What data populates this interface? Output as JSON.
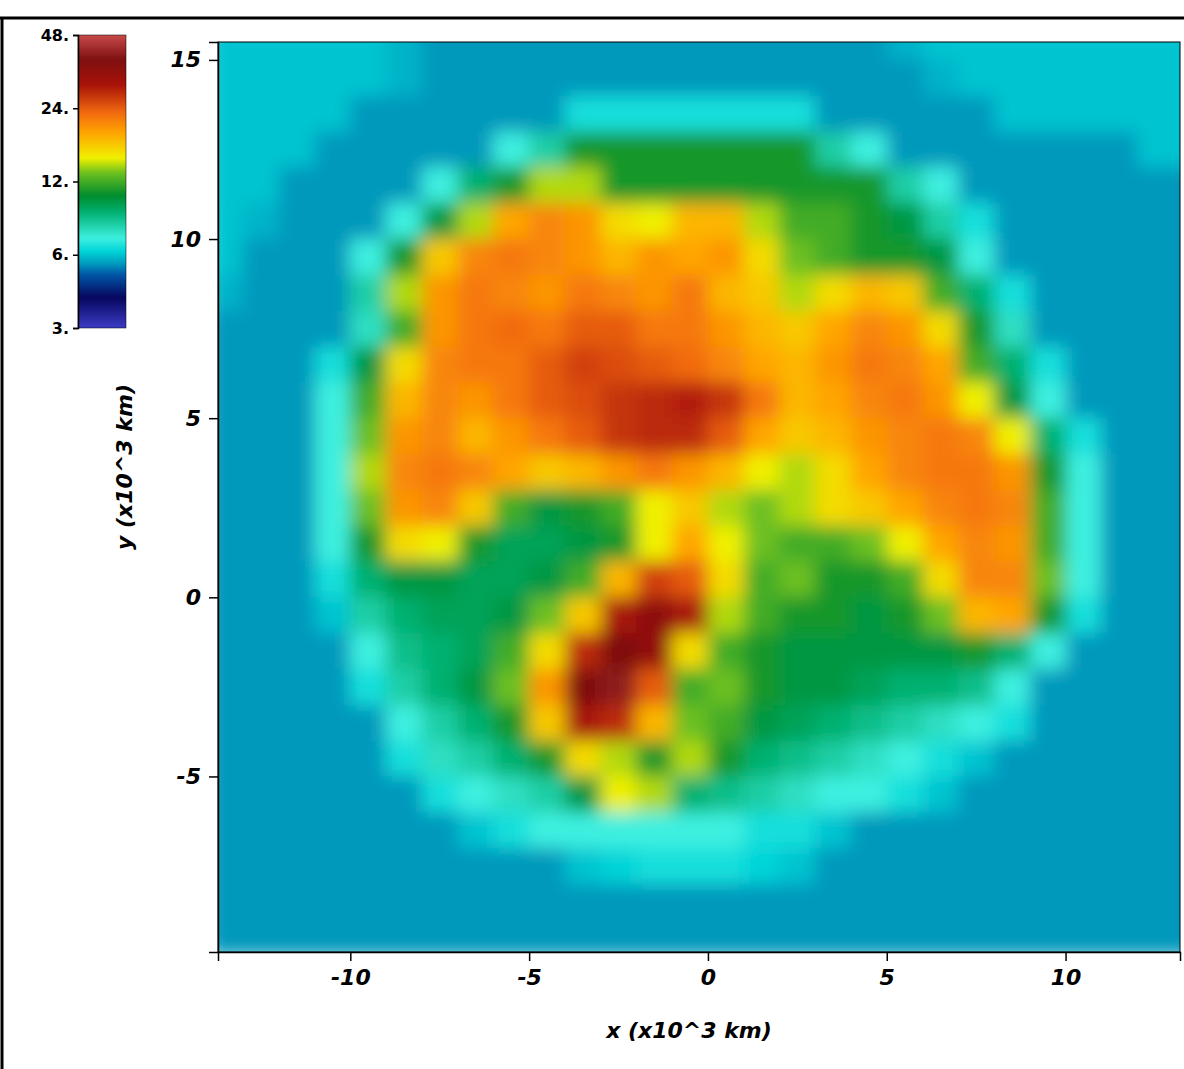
{
  "chart_data": {
    "type": "heatmap",
    "xlabel": "x (x10^3 km)",
    "ylabel": "y (x10^3 km)",
    "xlim": [
      -13.7,
      13.2
    ],
    "ylim": [
      -9.9,
      15.5
    ],
    "xticks": [
      -10,
      -5,
      0,
      5,
      10
    ],
    "yticks": [
      -5,
      0,
      5,
      10,
      15
    ],
    "x": [
      -13.5,
      -12.5,
      -11.5,
      -10.5,
      -9.5,
      -8.5,
      -7.5,
      -6.5,
      -5.5,
      -4.5,
      -3.5,
      -2.5,
      -1.5,
      -0.5,
      0.5,
      1.5,
      2.5,
      3.5,
      4.5,
      5.5,
      6.5,
      7.5,
      8.5,
      9.5,
      10.5,
      11.5,
      12.5,
      13.5
    ],
    "y": [
      15.5,
      14.5,
      13.5,
      12.5,
      11.5,
      10.5,
      9.5,
      8.5,
      7.5,
      6.5,
      5.5,
      4.5,
      3.5,
      2.5,
      1.5,
      0.5,
      -0.5,
      -1.5,
      -2.5,
      -3.5,
      -4.5,
      -5.5,
      -6.5,
      -7.5,
      -8.5,
      -9.5
    ],
    "values": [
      [
        6,
        6,
        6,
        6,
        6,
        5.8,
        5.5,
        5.5,
        5.5,
        5.5,
        5.5,
        5.5,
        5.5,
        5.5,
        5.5,
        5.5,
        5.5,
        5.5,
        5.5,
        5.8,
        6,
        6,
        6,
        6,
        6,
        6,
        6,
        6
      ],
      [
        6,
        6,
        6,
        6,
        6,
        5.8,
        5.5,
        5.5,
        5.5,
        5.5,
        5.5,
        5.5,
        5.5,
        5.5,
        5.5,
        5.5,
        5.5,
        5.5,
        5.5,
        5.5,
        5.8,
        6,
        6,
        6,
        6,
        6,
        6,
        6
      ],
      [
        6,
        6,
        6,
        6,
        5.5,
        5.5,
        5.5,
        5.5,
        5.5,
        5.5,
        6.5,
        6.5,
        6.5,
        6.5,
        6.5,
        6.5,
        6.5,
        5.5,
        5.5,
        5.5,
        5.5,
        5.5,
        6,
        6,
        6,
        6,
        6,
        6
      ],
      [
        6,
        6,
        6,
        5.5,
        5.5,
        5.5,
        5.5,
        5.5,
        7,
        8,
        11,
        11,
        11,
        11,
        11,
        11,
        11,
        8,
        7,
        5.5,
        5.5,
        5.5,
        5.5,
        5.5,
        5.5,
        5.5,
        6,
        6
      ],
      [
        6,
        6,
        5.5,
        5.5,
        5.5,
        5.5,
        7,
        9,
        11,
        14,
        14,
        11,
        11,
        11,
        11,
        11,
        11,
        11,
        11,
        8,
        7,
        5.5,
        5.5,
        5.5,
        5.5,
        5.5,
        5.5,
        5.5
      ],
      [
        6,
        5.8,
        5.5,
        5.5,
        5.5,
        7,
        10,
        14,
        19,
        21,
        20,
        16,
        15,
        18,
        18,
        14,
        12,
        12,
        11,
        10,
        8,
        6.5,
        5.5,
        5.5,
        5.5,
        5.5,
        5.5,
        5.5
      ],
      [
        6,
        5.5,
        5.5,
        5.5,
        7,
        11,
        17,
        21,
        22,
        21,
        20,
        18,
        20,
        19,
        20,
        16,
        13,
        12,
        11,
        11,
        10,
        7,
        5.5,
        5.5,
        5.5,
        5.5,
        5.5,
        5.5
      ],
      [
        5.8,
        5.5,
        5.5,
        5.5,
        8,
        14,
        20,
        22,
        21,
        20,
        22,
        21,
        20,
        22,
        18,
        17,
        14,
        16,
        18,
        17,
        12,
        9,
        6.5,
        5.5,
        5.5,
        5.5,
        5.5,
        5.5
      ],
      [
        5.5,
        5.5,
        5.5,
        5.5,
        7.5,
        12,
        20,
        22,
        23,
        22,
        24,
        24,
        22,
        22,
        20,
        18,
        17,
        19,
        21,
        20,
        16,
        11,
        7.5,
        5.5,
        5.5,
        5.5,
        5.5,
        5.5
      ],
      [
        5.5,
        5.5,
        5.5,
        6.5,
        10,
        16,
        21,
        22,
        22,
        24,
        26,
        25,
        24,
        23,
        21,
        19,
        18,
        20,
        22,
        21,
        19,
        12,
        9,
        6.5,
        5.5,
        5.5,
        5.5,
        5.5
      ],
      [
        5.5,
        5.5,
        5.5,
        7,
        12,
        18,
        21,
        20,
        22,
        24,
        25,
        27,
        28,
        29,
        27,
        22,
        18,
        19,
        21,
        22,
        20,
        15,
        10,
        7,
        5.5,
        5.5,
        5.5,
        5.5
      ],
      [
        5.5,
        5.5,
        5.5,
        7,
        13,
        20,
        21,
        18,
        20,
        22,
        24,
        27,
        28,
        28,
        24,
        19,
        17,
        18,
        20,
        21,
        22,
        21,
        15,
        9,
        6.5,
        5.5,
        5.5,
        5.5
      ],
      [
        5.5,
        5.5,
        5.5,
        7,
        14,
        21,
        22,
        21,
        19,
        17,
        18,
        20,
        22,
        20,
        18,
        15,
        14,
        16,
        19,
        21,
        22,
        22,
        20,
        11,
        7,
        5.5,
        5.5,
        5.5
      ],
      [
        5.5,
        5.5,
        5.5,
        7,
        13,
        20,
        21,
        17,
        12,
        10,
        11,
        12,
        15,
        17,
        14,
        13,
        14,
        16,
        17,
        19,
        21,
        22,
        21,
        12,
        7,
        5.5,
        5.5,
        5.5
      ],
      [
        5.5,
        5.5,
        5.5,
        7,
        11,
        16,
        15,
        11,
        9.5,
        9.5,
        10,
        11,
        15,
        19,
        15,
        13,
        12,
        12,
        13,
        15,
        19,
        21,
        20,
        12,
        7,
        5.5,
        5.5,
        5.5
      ],
      [
        5.5,
        5.5,
        5.5,
        6.5,
        9,
        10,
        10,
        9.5,
        9.5,
        10,
        12,
        18,
        26,
        24,
        16,
        12,
        13,
        11,
        11,
        12,
        16,
        21,
        21,
        13,
        7,
        5.5,
        5.5,
        5.5
      ],
      [
        5.5,
        5.5,
        5.5,
        6,
        8,
        9,
        9.5,
        9.5,
        10,
        13,
        17,
        30,
        35,
        30,
        14,
        12,
        11,
        11,
        10,
        11,
        13,
        18,
        19,
        11,
        6.5,
        5.5,
        5.5,
        5.5
      ],
      [
        5.5,
        5.5,
        5.5,
        5.5,
        7,
        8.5,
        9,
        9.5,
        12,
        16,
        28,
        38,
        34,
        16,
        12,
        11,
        10,
        10,
        10,
        10,
        10,
        11,
        9,
        7,
        5.5,
        5.5,
        5.5,
        5.5
      ],
      [
        5.5,
        5.5,
        5.5,
        5.5,
        6.5,
        8,
        9,
        10,
        13,
        20,
        38,
        40,
        24,
        12,
        13,
        11,
        10,
        10,
        9.5,
        9,
        9,
        8.5,
        7,
        5.5,
        5.5,
        5.5,
        5.5,
        5.5
      ],
      [
        5.5,
        5.5,
        5.5,
        5.5,
        5.5,
        7,
        8,
        9,
        11,
        17,
        30,
        28,
        18,
        13,
        12,
        10,
        9.5,
        9,
        8.5,
        8,
        7.5,
        7,
        6.5,
        5.5,
        5.5,
        5.5,
        5.5,
        5.5
      ],
      [
        5.5,
        5.5,
        5.5,
        5.5,
        5.5,
        6.5,
        7.5,
        8,
        9,
        11,
        16,
        14,
        11,
        14,
        11,
        9,
        8.5,
        8,
        7.5,
        7,
        6.5,
        6,
        5.5,
        5.5,
        5.5,
        5.5,
        5.5,
        5.5
      ],
      [
        5.5,
        5.5,
        5.5,
        5.5,
        5.5,
        5.5,
        6.5,
        7,
        7.5,
        8,
        10,
        15,
        14,
        9,
        8.5,
        8,
        7.5,
        7,
        7,
        6.5,
        6,
        5.5,
        5.5,
        5.5,
        5.5,
        5.5,
        5.5,
        5.5
      ],
      [
        5.5,
        5.5,
        5.5,
        5.5,
        5.5,
        5.5,
        5.5,
        6,
        6.5,
        7,
        7,
        7,
        7,
        7,
        7,
        6.5,
        6.5,
        6,
        5.5,
        5.5,
        5.5,
        5.5,
        5.5,
        5.5,
        5.5,
        5.5,
        5.5,
        5.5
      ],
      [
        5.5,
        5.5,
        5.5,
        5.5,
        5.5,
        5.5,
        5.5,
        5.5,
        5.5,
        5.5,
        6,
        6.2,
        6.5,
        6.5,
        6.5,
        6.2,
        6,
        5.5,
        5.5,
        5.5,
        5.5,
        5.5,
        5.5,
        5.5,
        5.5,
        5.5,
        5.5,
        5.5
      ],
      [
        5.5,
        5.5,
        5.5,
        5.5,
        5.5,
        5.5,
        5.5,
        5.5,
        5.5,
        5.5,
        5.5,
        5.5,
        5.5,
        5.5,
        5.5,
        5.5,
        5.5,
        5.5,
        5.5,
        5.5,
        5.5,
        5.5,
        5.5,
        5.5,
        5.5,
        5.5,
        5.5,
        5.5
      ],
      [
        5.5,
        5.5,
        5.5,
        5.5,
        5.5,
        5.5,
        5.5,
        5.5,
        5.5,
        5.5,
        5.5,
        5.5,
        5.5,
        5.5,
        5.5,
        5.5,
        5.5,
        5.5,
        5.5,
        5.5,
        5.5,
        5.5,
        5.5,
        5.5,
        5.5,
        5.5,
        5.5,
        5.5
      ]
    ],
    "colorbar": {
      "range": [
        3,
        48
      ],
      "log": true,
      "ticks": [
        {
          "value": 3,
          "label": "3."
        },
        {
          "value": 6,
          "label": "6."
        },
        {
          "value": 12,
          "label": "12."
        },
        {
          "value": 24,
          "label": "24."
        },
        {
          "value": 48,
          "label": "48."
        }
      ]
    }
  }
}
